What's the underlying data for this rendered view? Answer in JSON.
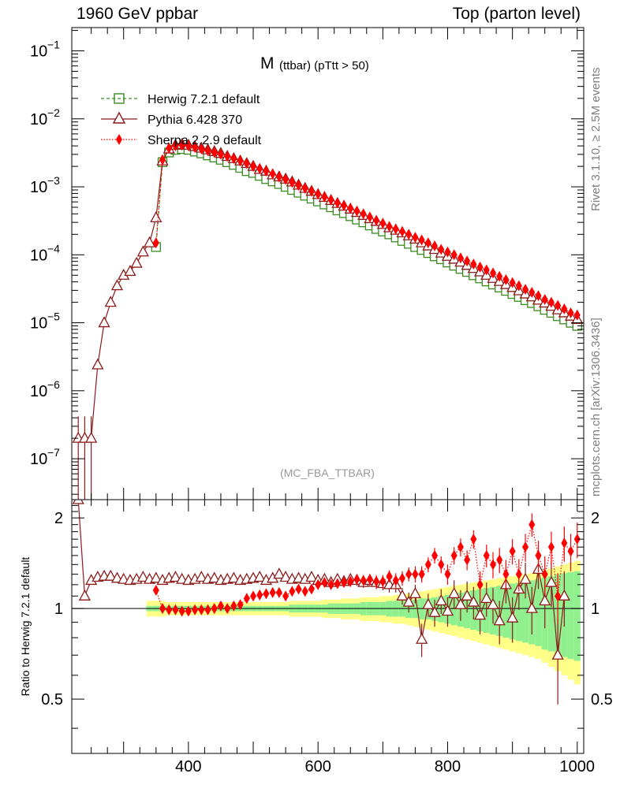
{
  "header": {
    "left": "1960 GeV ppbar",
    "right": "Top (parton level)"
  },
  "side_labels": {
    "rivet": "Rivet 3.1.10, ≥ 2.5M events",
    "mcplots": "mcplots.cern.ch [arXiv:1306.3436]"
  },
  "chart_data": {
    "type": "line",
    "title": "M",
    "title_sub": "(ttbar) (pTtt > 50)",
    "watermark": "(MC_FBA_TTBAR)",
    "xlabel": "",
    "ylabel": "",
    "ratio_ylabel": "Ratio to Herwig 7.2.1 default",
    "xlim": [
      220,
      1010
    ],
    "ylim_log": [
      2.5e-08,
      0.22
    ],
    "ratio_ylim": [
      0.33,
      2.3
    ],
    "x_ticks": [
      "400",
      "600",
      "800",
      "1000"
    ],
    "y_ticks": [
      "10",
      "10",
      "10",
      "10",
      "10",
      "10",
      "10"
    ],
    "y_tick_exponents": [
      "−1",
      "−2",
      "−3",
      "−4",
      "−5",
      "−6",
      "−7"
    ],
    "ratio_ticks": [
      "2",
      "1",
      "0.5"
    ],
    "legend": [
      {
        "name": "Herwig 7.2.1 default",
        "color": "#3a8a20",
        "marker": "open-square",
        "dash": "dashed"
      },
      {
        "name": "Pythia 6.428 370",
        "color": "#8b1a1a",
        "marker": "open-triangle",
        "dash": "solid"
      },
      {
        "name": "Sherpa 2.2.9 default",
        "color": "#ff0000",
        "marker": "filled-diamond",
        "dash": "dotted"
      }
    ],
    "series": [
      {
        "name": "Herwig 7.2.1 default",
        "x": [
          350,
          360,
          370,
          380,
          390,
          400,
          410,
          420,
          430,
          440,
          450,
          460,
          470,
          480,
          490,
          500,
          510,
          520,
          530,
          540,
          550,
          560,
          570,
          580,
          590,
          600,
          610,
          620,
          630,
          640,
          650,
          660,
          670,
          680,
          690,
          700,
          710,
          720,
          730,
          740,
          750,
          760,
          770,
          780,
          790,
          800,
          810,
          820,
          830,
          840,
          850,
          860,
          870,
          880,
          890,
          900,
          910,
          920,
          930,
          940,
          950,
          960,
          970,
          980,
          990,
          1000
        ],
        "y": [
          0.00013,
          0.0023,
          0.0032,
          0.0035,
          0.0036,
          0.0035,
          0.0033,
          0.0031,
          0.0029,
          0.0027,
          0.0025,
          0.0023,
          0.0021,
          0.0019,
          0.0017,
          0.0016,
          0.00145,
          0.0013,
          0.0012,
          0.0011,
          0.001,
          0.0009,
          0.00082,
          0.00074,
          0.00067,
          0.00061,
          0.00055,
          0.0005,
          0.00045,
          0.00041,
          0.00037,
          0.00033,
          0.0003,
          0.00027,
          0.00024,
          0.00022,
          0.0002,
          0.00018,
          0.00016,
          0.000145,
          0.00013,
          0.000118,
          0.000106,
          9.5e-05,
          8.6e-05,
          7.7e-05,
          6.9e-05,
          6.2e-05,
          5.6e-05,
          5e-05,
          4.5e-05,
          4.05e-05,
          3.65e-05,
          3.3e-05,
          2.95e-05,
          2.65e-05,
          2.4e-05,
          2.15e-05,
          1.95e-05,
          1.75e-05,
          1.55e-05,
          1.4e-05,
          1.25e-05,
          1.12e-05,
          1e-05,
          9e-06
        ]
      },
      {
        "name": "Pythia 6.428 370",
        "x": [
          230,
          240,
          250,
          260,
          270,
          280,
          290,
          300,
          310,
          320,
          330,
          340,
          350,
          360,
          370,
          380,
          390,
          400,
          410,
          420,
          430,
          440,
          450,
          460,
          470,
          480,
          490,
          500,
          510,
          520,
          530,
          540,
          550,
          560,
          570,
          580,
          590,
          600,
          610,
          620,
          630,
          640,
          650,
          660,
          670,
          680,
          690,
          700,
          710,
          720,
          730,
          740,
          750,
          760,
          770,
          780,
          790,
          800,
          810,
          820,
          830,
          840,
          850,
          860,
          870,
          880,
          890,
          900,
          910,
          920,
          930,
          940,
          950,
          960,
          970,
          980,
          990,
          1000
        ],
        "y": [
          2e-07,
          2e-07,
          2e-07,
          2.4e-06,
          1e-05,
          2e-05,
          3.5e-05,
          5e-05,
          5.7e-05,
          7.5e-05,
          0.00011,
          0.00015,
          0.00035,
          0.0024,
          0.0036,
          0.0041,
          0.0042,
          0.0041,
          0.0039,
          0.0037,
          0.0035,
          0.0033,
          0.0031,
          0.0028,
          0.0026,
          0.0024,
          0.0022,
          0.002,
          0.0018,
          0.0017,
          0.0015,
          0.0014,
          0.0013,
          0.00118,
          0.00106,
          0.00095,
          0.00086,
          0.00077,
          0.0007,
          0.00063,
          0.00057,
          0.00052,
          0.00047,
          0.00042,
          0.00038,
          0.00034,
          0.00031,
          0.00028,
          0.00025,
          0.00023,
          0.00021,
          0.00019,
          0.00017,
          0.00015,
          0.000135,
          0.00012,
          0.000106,
          9.5e-05,
          8.6e-05,
          7.8e-05,
          7e-05,
          6.3e-05,
          5.6e-05,
          5e-05,
          4.5e-05,
          4.05e-05,
          3.65e-05,
          3.3e-05,
          2.95e-05,
          2.65e-05,
          2.4e-05,
          2.15e-05,
          1.95e-05,
          1.75e-05,
          1.55e-05,
          1.4e-05,
          1.25e-05,
          1.12e-05
        ],
        "ratio": [
          2.3,
          1.1,
          1.24,
          1.27,
          1.28,
          1.28,
          1.26,
          1.25,
          1.24,
          1.25,
          1.27,
          1.25,
          1.26,
          1.24,
          1.26,
          1.27,
          1.25,
          1.24,
          1.25,
          1.27,
          1.25,
          1.26,
          1.24,
          1.25,
          1.26,
          1.24,
          1.25,
          1.26,
          1.27,
          1.24,
          1.26,
          1.3,
          1.27,
          1.25,
          1.26,
          1.25,
          1.27,
          1.24,
          1.25,
          1.22,
          1.25,
          1.23,
          1.25,
          1.24,
          1.22,
          1.24,
          1.22,
          1.21,
          1.2,
          1.2,
          1.1,
          1.05,
          1.12,
          0.79,
          1.03,
          0.97,
          1.06,
          0.98,
          1.12,
          1.03,
          1.1,
          1.05,
          0.95,
          1.08,
          1.03,
          0.91,
          1.2,
          0.93,
          1.16,
          1.25,
          1.0,
          1.35,
          1.06,
          1.22,
          0.7,
          1.1
        ],
        "ratio_err": [
          0.0,
          0.02,
          0.02,
          0.02,
          0.02,
          0.02,
          0.02,
          0.02,
          0.02,
          0.02,
          0.02,
          0.02,
          0.02,
          0.02,
          0.02,
          0.02,
          0.02,
          0.02,
          0.02,
          0.02,
          0.02,
          0.02,
          0.02,
          0.02,
          0.02,
          0.02,
          0.02,
          0.02,
          0.02,
          0.02,
          0.02,
          0.02,
          0.03,
          0.03,
          0.03,
          0.03,
          0.03,
          0.03,
          0.04,
          0.04,
          0.04,
          0.04,
          0.05,
          0.05,
          0.05,
          0.06,
          0.06,
          0.06,
          0.07,
          0.07,
          0.07,
          0.08,
          0.08,
          0.1,
          0.09,
          0.1,
          0.1,
          0.11,
          0.12,
          0.12,
          0.13,
          0.13,
          0.13,
          0.14,
          0.14,
          0.15,
          0.16,
          0.16,
          0.17,
          0.17,
          0.18,
          0.19,
          0.2,
          0.21,
          0.22,
          0.23
        ]
      },
      {
        "name": "Sherpa 2.2.9 default",
        "x": [
          350,
          360,
          370,
          380,
          390,
          400,
          410,
          420,
          430,
          440,
          450,
          460,
          470,
          480,
          490,
          500,
          510,
          520,
          530,
          540,
          550,
          560,
          570,
          580,
          590,
          600,
          610,
          620,
          630,
          640,
          650,
          660,
          670,
          680,
          690,
          700,
          710,
          720,
          730,
          740,
          750,
          760,
          770,
          780,
          790,
          800,
          810,
          820,
          830,
          840,
          850,
          860,
          870,
          880,
          890,
          900,
          910,
          920,
          930,
          940,
          950,
          960,
          970,
          980,
          990,
          1000
        ],
        "y": [
          0.00015,
          0.0025,
          0.0037,
          0.004,
          0.0041,
          0.004,
          0.0038,
          0.0036,
          0.0034,
          0.0032,
          0.003,
          0.0028,
          0.0026,
          0.0024,
          0.0022,
          0.002,
          0.00185,
          0.0017,
          0.00155,
          0.0014,
          0.00128,
          0.00116,
          0.00105,
          0.00095,
          0.00086,
          0.00078,
          0.00071,
          0.00064,
          0.00058,
          0.00053,
          0.00048,
          0.00044,
          0.0004,
          0.00036,
          0.00032,
          0.00029,
          0.00026,
          0.00024,
          0.00022,
          0.0002,
          0.00018,
          0.000165,
          0.00015,
          0.000135,
          0.00012,
          0.00011,
          0.0001,
          9e-05,
          8.1e-05,
          7.3e-05,
          6.6e-05,
          6e-05,
          5.4e-05,
          4.8e-05,
          4.3e-05,
          3.9e-05,
          3.5e-05,
          3.1e-05,
          2.8e-05,
          2.5e-05,
          2.2e-05,
          2e-05,
          1.8e-05,
          1.6e-05,
          1.4e-05,
          1.3e-05
        ],
        "ratio": [
          1.15,
          1.0,
          0.99,
          0.99,
          0.98,
          0.98,
          0.99,
          0.99,
          0.99,
          1.0,
          1.02,
          1.0,
          1.02,
          1.03,
          1.08,
          1.1,
          1.11,
          1.12,
          1.13,
          1.13,
          1.1,
          1.14,
          1.16,
          1.14,
          1.16,
          1.2,
          1.22,
          1.2,
          1.21,
          1.22,
          1.23,
          1.25,
          1.24,
          1.25,
          1.23,
          1.23,
          1.28,
          1.24,
          1.26,
          1.3,
          1.3,
          1.3,
          1.4,
          1.5,
          1.4,
          1.3,
          1.5,
          1.6,
          1.45,
          1.7,
          1.2,
          1.5,
          1.4,
          1.45,
          1.3,
          1.55,
          1.3,
          1.6,
          1.9,
          1.5,
          1.3,
          1.6,
          1.1,
          1.65,
          1.55,
          1.7
        ],
        "ratio_err": [
          0.02,
          0.02,
          0.02,
          0.02,
          0.02,
          0.02,
          0.02,
          0.02,
          0.02,
          0.02,
          0.02,
          0.02,
          0.02,
          0.02,
          0.02,
          0.02,
          0.02,
          0.02,
          0.02,
          0.02,
          0.02,
          0.03,
          0.03,
          0.03,
          0.03,
          0.03,
          0.04,
          0.04,
          0.04,
          0.04,
          0.05,
          0.05,
          0.05,
          0.05,
          0.06,
          0.06,
          0.06,
          0.07,
          0.07,
          0.07,
          0.08,
          0.08,
          0.08,
          0.09,
          0.09,
          0.1,
          0.1,
          0.11,
          0.11,
          0.12,
          0.13,
          0.13,
          0.14,
          0.14,
          0.15,
          0.15,
          0.16,
          0.17,
          0.17,
          0.18,
          0.19,
          0.2,
          0.21,
          0.22,
          0.22,
          0.23
        ]
      }
    ],
    "reference_band": {
      "x": [
        340,
        350,
        360,
        370,
        380,
        390,
        400,
        410,
        420,
        430,
        440,
        450,
        460,
        470,
        480,
        490,
        500,
        510,
        520,
        530,
        540,
        550,
        560,
        570,
        580,
        590,
        600,
        610,
        620,
        630,
        640,
        650,
        660,
        670,
        680,
        690,
        700,
        710,
        720,
        730,
        740,
        750,
        760,
        770,
        780,
        790,
        800,
        810,
        820,
        830,
        840,
        850,
        860,
        870,
        880,
        890,
        900,
        910,
        920,
        930,
        940,
        950,
        960,
        970,
        980,
        990,
        1000
      ],
      "inner": [
        0.02,
        0.02,
        0.02,
        0.02,
        0.02,
        0.02,
        0.02,
        0.02,
        0.02,
        0.02,
        0.02,
        0.02,
        0.02,
        0.02,
        0.02,
        0.02,
        0.02,
        0.02,
        0.02,
        0.02,
        0.02,
        0.02,
        0.03,
        0.03,
        0.03,
        0.03,
        0.03,
        0.03,
        0.04,
        0.04,
        0.04,
        0.04,
        0.04,
        0.05,
        0.05,
        0.05,
        0.05,
        0.06,
        0.06,
        0.06,
        0.07,
        0.07,
        0.08,
        0.08,
        0.09,
        0.1,
        0.11,
        0.12,
        0.13,
        0.14,
        0.15,
        0.16,
        0.17,
        0.18,
        0.19,
        0.2,
        0.21,
        0.22,
        0.23,
        0.24,
        0.25,
        0.27,
        0.28,
        0.3,
        0.31,
        0.32,
        0.33
      ],
      "outer": [
        0.06,
        0.06,
        0.06,
        0.05,
        0.05,
        0.05,
        0.05,
        0.05,
        0.05,
        0.05,
        0.05,
        0.05,
        0.05,
        0.05,
        0.05,
        0.05,
        0.05,
        0.05,
        0.05,
        0.05,
        0.05,
        0.05,
        0.06,
        0.06,
        0.06,
        0.06,
        0.06,
        0.07,
        0.07,
        0.07,
        0.08,
        0.08,
        0.08,
        0.09,
        0.09,
        0.09,
        0.1,
        0.1,
        0.11,
        0.11,
        0.12,
        0.13,
        0.14,
        0.15,
        0.16,
        0.17,
        0.18,
        0.19,
        0.2,
        0.21,
        0.22,
        0.23,
        0.24,
        0.25,
        0.26,
        0.27,
        0.28,
        0.29,
        0.3,
        0.31,
        0.32,
        0.34,
        0.36,
        0.38,
        0.4,
        0.42,
        0.44
      ]
    }
  }
}
